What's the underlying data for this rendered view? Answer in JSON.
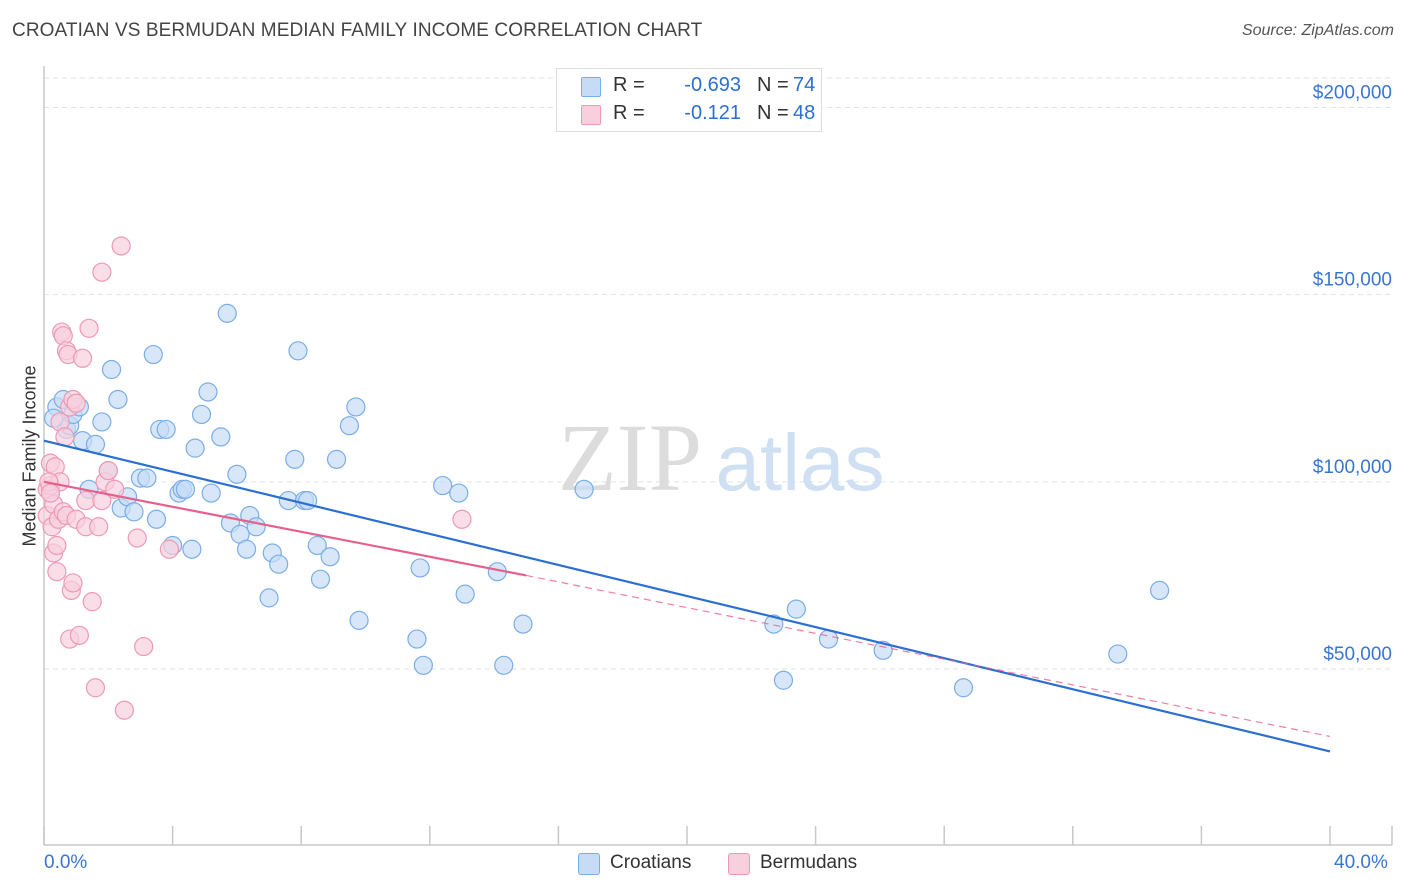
{
  "chart_data": {
    "type": "scatter",
    "title": "CROATIAN VS BERMUDAN MEDIAN FAMILY INCOME CORRELATION CHART",
    "source": "Source: ZipAtlas.com",
    "xlabel": "",
    "ylabel": "Median Family Income",
    "xlim": [
      0,
      40
    ],
    "ylim": [
      3000,
      210000
    ],
    "x_tick_labels": {
      "min": "0.0%",
      "max": "40.0%"
    },
    "y_ticks": [
      {
        "value": 50000,
        "label": "$50,000"
      },
      {
        "value": 100000,
        "label": "$100,000"
      },
      {
        "value": 150000,
        "label": "$150,000"
      },
      {
        "value": 200000,
        "label": "$200,000"
      }
    ],
    "watermark": "ZIPatlas",
    "legend": {
      "rows": [
        {
          "r_label": "R =",
          "r_value": "-0.693",
          "n_label": "N =",
          "n_value": "74"
        },
        {
          "r_label": "R =",
          "r_value": "-0.121",
          "n_label": "N =",
          "n_value": "48"
        }
      ]
    },
    "series": [
      {
        "name": "Croatians",
        "color": "#7aaee8",
        "fill": "#c6dcf6",
        "line_color": "#2a6fd1",
        "trend": {
          "x0": 0,
          "y0": 111000,
          "x1": 40,
          "y1": 28000
        },
        "points": [
          [
            0.2,
            98000
          ],
          [
            0.4,
            120000
          ],
          [
            0.6,
            122000
          ],
          [
            0.7,
            114000
          ],
          [
            0.8,
            115000
          ],
          [
            0.9,
            118000
          ],
          [
            1.1,
            120000
          ],
          [
            1.2,
            111000
          ],
          [
            1.4,
            98000
          ],
          [
            1.6,
            110000
          ],
          [
            1.8,
            116000
          ],
          [
            2.0,
            103000
          ],
          [
            2.1,
            130000
          ],
          [
            2.3,
            122000
          ],
          [
            2.4,
            93000
          ],
          [
            2.6,
            96000
          ],
          [
            2.8,
            92000
          ],
          [
            3.0,
            101000
          ],
          [
            3.2,
            101000
          ],
          [
            3.4,
            134000
          ],
          [
            3.5,
            90000
          ],
          [
            3.6,
            114000
          ],
          [
            3.8,
            114000
          ],
          [
            4.0,
            83000
          ],
          [
            4.2,
            97000
          ],
          [
            4.3,
            98000
          ],
          [
            4.4,
            98000
          ],
          [
            4.6,
            82000
          ],
          [
            4.7,
            109000
          ],
          [
            4.9,
            118000
          ],
          [
            5.1,
            124000
          ],
          [
            5.2,
            97000
          ],
          [
            5.5,
            112000
          ],
          [
            5.7,
            145000
          ],
          [
            5.8,
            89000
          ],
          [
            6.0,
            102000
          ],
          [
            6.1,
            86000
          ],
          [
            6.3,
            82000
          ],
          [
            6.4,
            91000
          ],
          [
            6.6,
            88000
          ],
          [
            7.0,
            69000
          ],
          [
            7.1,
            81000
          ],
          [
            7.3,
            78000
          ],
          [
            7.6,
            95000
          ],
          [
            7.8,
            106000
          ],
          [
            7.9,
            135000
          ],
          [
            8.1,
            95000
          ],
          [
            8.2,
            95000
          ],
          [
            8.5,
            83000
          ],
          [
            8.6,
            74000
          ],
          [
            8.9,
            80000
          ],
          [
            9.1,
            106000
          ],
          [
            9.5,
            115000
          ],
          [
            9.7,
            120000
          ],
          [
            9.8,
            63000
          ],
          [
            11.6,
            58000
          ],
          [
            11.7,
            77000
          ],
          [
            11.8,
            51000
          ],
          [
            12.4,
            99000
          ],
          [
            12.9,
            97000
          ],
          [
            13.1,
            70000
          ],
          [
            14.1,
            76000
          ],
          [
            14.3,
            51000
          ],
          [
            14.9,
            62000
          ],
          [
            16.8,
            98000
          ],
          [
            22.7,
            62000
          ],
          [
            23.0,
            47000
          ],
          [
            23.4,
            66000
          ],
          [
            24.4,
            58000
          ],
          [
            26.1,
            55000
          ],
          [
            28.6,
            45000
          ],
          [
            33.4,
            54000
          ],
          [
            34.7,
            71000
          ],
          [
            0.3,
            117000
          ]
        ]
      },
      {
        "name": "Bermudans",
        "color": "#ef99b4",
        "fill": "#f8d0dd",
        "line_color": "#e6608c",
        "trend": {
          "x0": 0,
          "y0": 100000,
          "x1": 15,
          "y1": 75000
        },
        "trend_ext": {
          "x0": 15,
          "y0": 75000,
          "x1": 40,
          "y1": 32000
        },
        "points": [
          [
            0.1,
            98000
          ],
          [
            0.1,
            91000
          ],
          [
            0.2,
            105000
          ],
          [
            0.2,
            99000
          ],
          [
            0.25,
            88000
          ],
          [
            0.3,
            81000
          ],
          [
            0.3,
            94000
          ],
          [
            0.35,
            104000
          ],
          [
            0.4,
            83000
          ],
          [
            0.4,
            76000
          ],
          [
            0.45,
            90000
          ],
          [
            0.5,
            100000
          ],
          [
            0.5,
            116000
          ],
          [
            0.55,
            140000
          ],
          [
            0.6,
            139000
          ],
          [
            0.6,
            92000
          ],
          [
            0.65,
            112000
          ],
          [
            0.7,
            91000
          ],
          [
            0.7,
            135000
          ],
          [
            0.75,
            134000
          ],
          [
            0.8,
            58000
          ],
          [
            0.8,
            120000
          ],
          [
            0.85,
            71000
          ],
          [
            0.9,
            122000
          ],
          [
            0.9,
            73000
          ],
          [
            1.0,
            121000
          ],
          [
            1.0,
            90000
          ],
          [
            1.1,
            59000
          ],
          [
            1.2,
            133000
          ],
          [
            1.3,
            88000
          ],
          [
            1.3,
            95000
          ],
          [
            1.4,
            141000
          ],
          [
            1.5,
            68000
          ],
          [
            1.6,
            45000
          ],
          [
            1.7,
            88000
          ],
          [
            1.8,
            156000
          ],
          [
            1.8,
            95000
          ],
          [
            1.9,
            100000
          ],
          [
            2.0,
            103000
          ],
          [
            2.2,
            98000
          ],
          [
            2.4,
            163000
          ],
          [
            2.5,
            39000
          ],
          [
            2.9,
            85000
          ],
          [
            3.1,
            56000
          ],
          [
            3.9,
            82000
          ],
          [
            13.0,
            90000
          ],
          [
            0.15,
            100000
          ],
          [
            0.2,
            97000
          ]
        ]
      }
    ]
  }
}
